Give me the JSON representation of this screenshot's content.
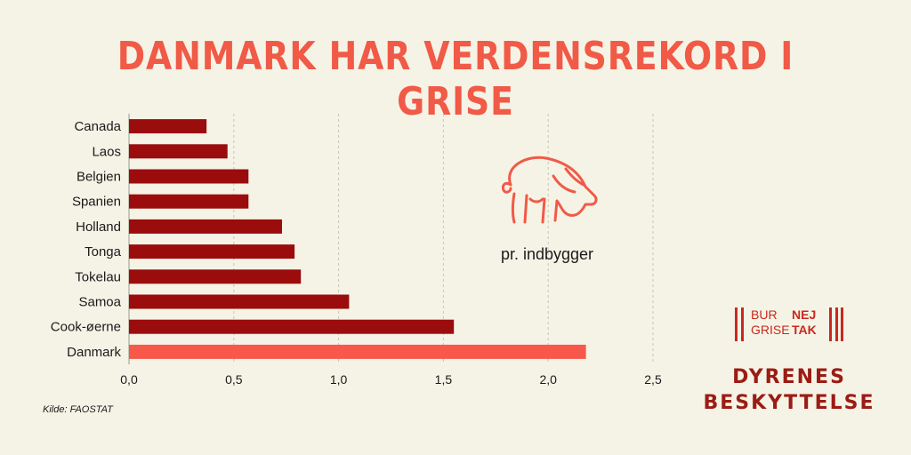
{
  "title": "DANMARK HAR VERDENSREKORD I GRISE",
  "pig_label": "pr. indbygger",
  "source": "Kilde: FAOSTAT",
  "logo": {
    "line1_a": "BUR",
    "line2_a": "GRISE",
    "line1_b": "NEJ",
    "line2_b": "TAK"
  },
  "organization": {
    "line1": "DYRENES",
    "line2": "BESKYTTELSE"
  },
  "colors": {
    "title": "#f05a47",
    "bar": "#9b0c0c",
    "highlight": "#f7584a",
    "background": "#f5f3e6"
  },
  "icon": "pig-icon",
  "chart_data": {
    "type": "bar",
    "orientation": "horizontal",
    "categories": [
      "Canada",
      "Laos",
      "Belgien",
      "Spanien",
      "Holland",
      "Tonga",
      "Tokelau",
      "Samoa",
      "Cook-øerne",
      "Danmark"
    ],
    "values": [
      0.37,
      0.47,
      0.57,
      0.57,
      0.73,
      0.79,
      0.82,
      1.05,
      1.55,
      2.18
    ],
    "highlight": "Danmark",
    "xlim": [
      0,
      2.5
    ],
    "xticks": [
      0,
      0.5,
      1.0,
      1.5,
      2.0,
      2.5
    ],
    "xtick_labels": [
      "0,0",
      "0,5",
      "1,0",
      "1,5",
      "2,0",
      "2,5"
    ],
    "grid": "vertical dashed"
  }
}
